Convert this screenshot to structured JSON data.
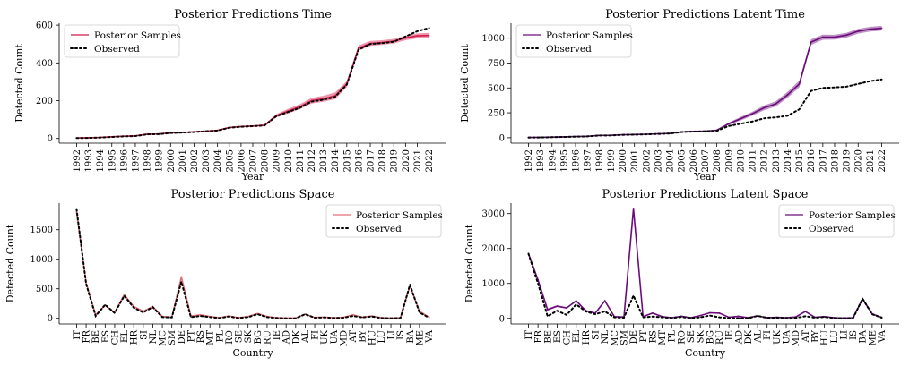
{
  "chart_data": [
    {
      "type": "line",
      "title": "Posterior Predictions Time",
      "xlabel": "Year",
      "ylabel": "Detected Count",
      "x": [
        "1992",
        "1993",
        "1994",
        "1995",
        "1996",
        "1997",
        "1998",
        "1999",
        "2000",
        "2001",
        "2002",
        "2003",
        "2004",
        "2005",
        "2006",
        "2007",
        "2008",
        "2009",
        "2010",
        "2011",
        "2012",
        "2013",
        "2014",
        "2015",
        "2016",
        "2017",
        "2018",
        "2019",
        "2020",
        "2021",
        "2022"
      ],
      "yticks": [
        0,
        200,
        400,
        600
      ],
      "ylim": [
        -25,
        610
      ],
      "legend": [
        "Posterior Samples",
        "Observed"
      ],
      "legend_position": "top-left",
      "sample_color": "#d6194b",
      "series": [
        {
          "name": "Posterior Samples",
          "style": "band",
          "values": [
            3,
            4,
            6,
            9,
            12,
            14,
            23,
            24,
            30,
            32,
            35,
            39,
            43,
            58,
            63,
            66,
            70,
            120,
            145,
            168,
            200,
            210,
            225,
            288,
            478,
            503,
            508,
            515,
            532,
            543,
            545
          ],
          "spread": [
            2,
            2,
            2,
            2,
            2,
            2,
            3,
            3,
            3,
            3,
            3,
            3,
            3,
            4,
            4,
            4,
            5,
            9,
            12,
            13,
            15,
            16,
            18,
            16,
            14,
            13,
            12,
            12,
            12,
            13,
            14
          ]
        },
        {
          "name": "Observed",
          "style": "dotted",
          "values": [
            2,
            3,
            5,
            8,
            11,
            13,
            22,
            23,
            29,
            31,
            34,
            38,
            42,
            57,
            62,
            65,
            69,
            118,
            140,
            162,
            195,
            205,
            220,
            285,
            470,
            500,
            505,
            512,
            540,
            568,
            585
          ]
        }
      ]
    },
    {
      "type": "line",
      "title": "Posterior Predictions Latent Time",
      "xlabel": "Year",
      "ylabel": "Detected Count",
      "x": [
        "1992",
        "1993",
        "1994",
        "1995",
        "1996",
        "1997",
        "1998",
        "1999",
        "2000",
        "2001",
        "2002",
        "2003",
        "2004",
        "2005",
        "2006",
        "2007",
        "2008",
        "2009",
        "2010",
        "2011",
        "2012",
        "2013",
        "2014",
        "2015",
        "2016",
        "2017",
        "2018",
        "2019",
        "2020",
        "2021",
        "2022"
      ],
      "yticks": [
        0,
        250,
        500,
        750,
        1000
      ],
      "ylim": [
        -55,
        1150
      ],
      "legend": [
        "Posterior Samples",
        "Observed"
      ],
      "legend_position": "top-left",
      "sample_color": "#6c0c7c",
      "series": [
        {
          "name": "Posterior Samples",
          "style": "band",
          "values": [
            3,
            4,
            6,
            9,
            12,
            14,
            23,
            24,
            30,
            32,
            35,
            39,
            43,
            58,
            63,
            66,
            75,
            140,
            190,
            240,
            300,
            340,
            430,
            540,
            960,
            1010,
            1010,
            1030,
            1070,
            1090,
            1100
          ],
          "spread": [
            2,
            2,
            2,
            2,
            2,
            2,
            3,
            3,
            3,
            3,
            3,
            3,
            3,
            4,
            4,
            5,
            6,
            12,
            18,
            20,
            24,
            26,
            30,
            34,
            28,
            26,
            24,
            24,
            24,
            24,
            24
          ]
        },
        {
          "name": "Observed",
          "style": "dotted",
          "values": [
            2,
            3,
            5,
            8,
            11,
            13,
            22,
            23,
            29,
            31,
            34,
            38,
            42,
            57,
            62,
            65,
            69,
            118,
            140,
            162,
            195,
            205,
            220,
            285,
            470,
            500,
            505,
            512,
            540,
            568,
            585
          ]
        }
      ]
    },
    {
      "type": "line",
      "title": "Posterior Predictions Space",
      "xlabel": "Country",
      "ylabel": "Detected Count",
      "x": [
        "IT",
        "FR",
        "BE",
        "ES",
        "CH",
        "EL",
        "HR",
        "SI",
        "NL",
        "MC",
        "SM",
        "DE",
        "PT",
        "RS",
        "MT",
        "PL",
        "RO",
        "SE",
        "SK",
        "BG",
        "RU",
        "IE",
        "AD",
        "DK",
        "AL",
        "FI",
        "UK",
        "UA",
        "MD",
        "AT",
        "BY",
        "HU",
        "LU",
        "LI",
        "IS",
        "BA",
        "ME",
        "VA"
      ],
      "yticks": [
        0,
        500,
        1000,
        1500
      ],
      "ylim": [
        -95,
        1950
      ],
      "legend": [
        "Posterior Samples",
        "Observed"
      ],
      "legend_position": "top-right",
      "sample_color": "#e0707a",
      "series": [
        {
          "name": "Posterior Samples",
          "style": "band",
          "values": [
            1800,
            600,
            60,
            220,
            100,
            400,
            200,
            120,
            200,
            30,
            20,
            700,
            40,
            60,
            30,
            10,
            40,
            10,
            30,
            80,
            30,
            10,
            5,
            5,
            70,
            15,
            20,
            10,
            15,
            60,
            20,
            40,
            10,
            5,
            10,
            550,
            120,
            20
          ],
          "spread": [
            40,
            30,
            10,
            15,
            10,
            20,
            15,
            10,
            15,
            6,
            5,
            40,
            8,
            12,
            6,
            4,
            8,
            4,
            6,
            10,
            6,
            4,
            3,
            3,
            8,
            4,
            5,
            4,
            4,
            12,
            5,
            6,
            3,
            2,
            3,
            20,
            10,
            4
          ]
        },
        {
          "name": "Observed",
          "style": "dotted",
          "values": [
            1850,
            580,
            40,
            230,
            90,
            380,
            180,
            100,
            190,
            20,
            15,
            620,
            20,
            40,
            20,
            5,
            30,
            5,
            20,
            70,
            20,
            5,
            0,
            0,
            70,
            10,
            15,
            5,
            10,
            40,
            15,
            30,
            5,
            0,
            5,
            570,
            100,
            10
          ]
        }
      ]
    },
    {
      "type": "line",
      "title": "Posterior Predictions Latent Space",
      "xlabel": "Country",
      "ylabel": "Detected Count",
      "x": [
        "IT",
        "FR",
        "BE",
        "ES",
        "CH",
        "EL",
        "HR",
        "SI",
        "NL",
        "MC",
        "SM",
        "DE",
        "PT",
        "RS",
        "MT",
        "PL",
        "RO",
        "SE",
        "SK",
        "BG",
        "RU",
        "IE",
        "AD",
        "DK",
        "AL",
        "FI",
        "UK",
        "UA",
        "MD",
        "AT",
        "BY",
        "HU",
        "LU",
        "LI",
        "IS",
        "BA",
        "ME",
        "VA"
      ],
      "yticks": [
        0,
        1000,
        2000,
        3000
      ],
      "ylim": [
        -160,
        3300
      ],
      "legend": [
        "Posterior Samples",
        "Observed"
      ],
      "legend_position": "top-right",
      "sample_color": "#6c0c7c",
      "series": [
        {
          "name": "Posterior Samples",
          "style": "band",
          "values": [
            1850,
            1100,
            250,
            350,
            300,
            500,
            220,
            150,
            500,
            50,
            40,
            3150,
            50,
            150,
            50,
            20,
            60,
            20,
            80,
            160,
            150,
            30,
            60,
            20,
            70,
            20,
            30,
            20,
            40,
            200,
            30,
            50,
            20,
            10,
            20,
            560,
            130,
            30
          ],
          "spread": [
            50,
            40,
            30,
            25,
            20,
            25,
            20,
            15,
            25,
            8,
            6,
            40,
            15,
            20,
            10,
            5,
            10,
            5,
            10,
            15,
            15,
            6,
            8,
            5,
            10,
            5,
            5,
            5,
            6,
            25,
            6,
            8,
            5,
            3,
            5,
            25,
            15,
            5
          ]
        },
        {
          "name": "Observed",
          "style": "dotted",
          "values": [
            1850,
            1000,
            60,
            220,
            100,
            400,
            200,
            120,
            200,
            30,
            20,
            650,
            30,
            50,
            30,
            10,
            40,
            10,
            30,
            80,
            30,
            10,
            5,
            5,
            70,
            15,
            20,
            10,
            15,
            60,
            20,
            40,
            10,
            5,
            10,
            560,
            120,
            20
          ]
        }
      ]
    }
  ]
}
